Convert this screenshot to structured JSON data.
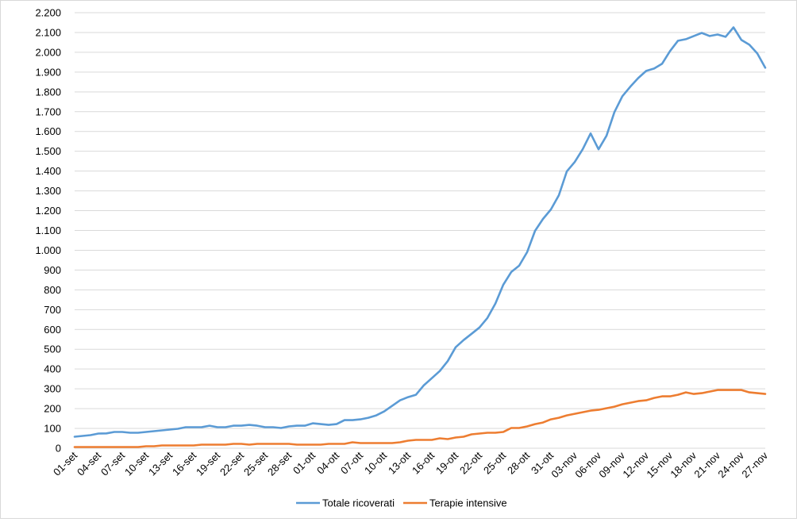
{
  "chart_data": {
    "type": "line",
    "title": "",
    "xlabel": "",
    "ylabel": "",
    "ylim": [
      0,
      2200
    ],
    "y_ticks": [
      0,
      100,
      200,
      300,
      400,
      500,
      600,
      700,
      800,
      900,
      1000,
      1100,
      1200,
      1300,
      1400,
      1500,
      1600,
      1700,
      1800,
      1900,
      2000,
      2100,
      2200
    ],
    "y_tick_labels": [
      "0",
      "100",
      "200",
      "300",
      "400",
      "500",
      "600",
      "700",
      "800",
      "900",
      "1.000",
      "1.100",
      "1.200",
      "1.300",
      "1.400",
      "1.500",
      "1.600",
      "1.700",
      "1.800",
      "1.900",
      "2.000",
      "2.100",
      "2.200"
    ],
    "grid": "horizontal",
    "legend_position": "bottom",
    "x_tick_labels": [
      "01-set",
      "04-set",
      "07-set",
      "10-set",
      "13-set",
      "16-set",
      "19-set",
      "22-set",
      "25-set",
      "28-set",
      "01-ott",
      "04-ott",
      "07-ott",
      "10-ott",
      "13-ott",
      "16-ott",
      "19-ott",
      "22-ott",
      "25-ott",
      "28-ott",
      "31-ott",
      "03-nov",
      "06-nov",
      "09-nov",
      "12-nov",
      "15-nov",
      "18-nov",
      "21-nov",
      "24-nov",
      "27-nov"
    ],
    "series": [
      {
        "name": "Totale ricoverati",
        "color": "#5b9bd5",
        "values": [
          58,
          62,
          66,
          74,
          75,
          82,
          82,
          78,
          78,
          82,
          86,
          90,
          94,
          98,
          106,
          106,
          106,
          114,
          106,
          106,
          114,
          114,
          118,
          114,
          106,
          106,
          102,
          110,
          114,
          114,
          126,
          122,
          118,
          122,
          142,
          142,
          146,
          154,
          166,
          186,
          214,
          242,
          258,
          270,
          318,
          354,
          390,
          440,
          510,
          546,
          578,
          610,
          658,
          730,
          826,
          890,
          922,
          990,
          1098,
          1158,
          1206,
          1278,
          1398,
          1446,
          1510,
          1590,
          1510,
          1578,
          1698,
          1778,
          1826,
          1870,
          1906,
          1918,
          1942,
          2006,
          2058,
          2066,
          2082,
          2098,
          2082,
          2090,
          2078,
          2126,
          2062,
          2038,
          1994,
          1922
        ]
      },
      {
        "name": "Terapie intensive",
        "color": "#ed7d31",
        "values": [
          6,
          6,
          6,
          6,
          6,
          6,
          6,
          6,
          6,
          10,
          10,
          14,
          14,
          14,
          14,
          14,
          18,
          18,
          18,
          18,
          22,
          22,
          18,
          22,
          22,
          22,
          22,
          22,
          18,
          18,
          18,
          18,
          22,
          22,
          22,
          30,
          26,
          26,
          26,
          26,
          26,
          30,
          38,
          42,
          42,
          42,
          50,
          46,
          54,
          58,
          70,
          74,
          78,
          78,
          82,
          102,
          102,
          110,
          122,
          130,
          146,
          154,
          166,
          174,
          182,
          190,
          194,
          202,
          210,
          222,
          230,
          238,
          242,
          254,
          262,
          262,
          270,
          282,
          274,
          278,
          286,
          294,
          294,
          294,
          294,
          282,
          278,
          274
        ]
      }
    ]
  }
}
